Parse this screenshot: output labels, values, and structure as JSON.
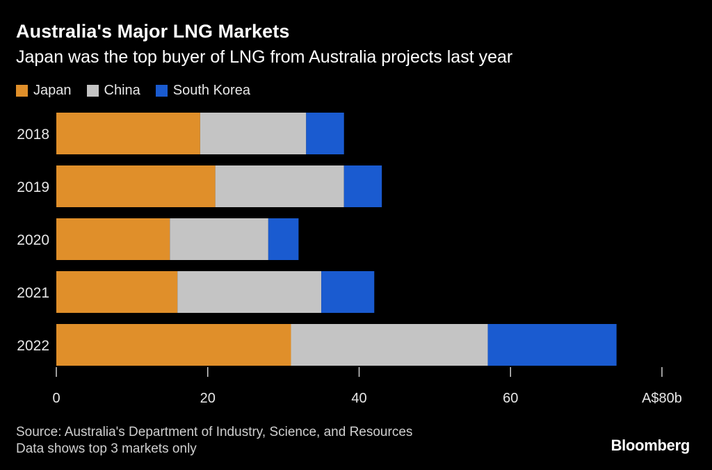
{
  "header": {
    "title": "Australia's Major LNG Markets",
    "subtitle": "Japan was the top buyer of LNG from Australia projects last year"
  },
  "footer": {
    "source": "Source: Australia's Department of Industry, Science, and Resources",
    "note": "Data shows top 3 markets only",
    "brand": "Bloomberg"
  },
  "chart_data": {
    "type": "bar",
    "orientation": "horizontal",
    "stacked": true,
    "title": "Australia's Major LNG Markets",
    "subtitle": "Japan was the top buyer of LNG from Australia projects last year",
    "categories": [
      "2018",
      "2019",
      "2020",
      "2021",
      "2022"
    ],
    "series": [
      {
        "name": "Japan",
        "color": "#E08F2A",
        "values": [
          19,
          21,
          15,
          16,
          31
        ]
      },
      {
        "name": "China",
        "color": "#C4C4C4",
        "values": [
          14,
          17,
          13,
          19,
          26
        ]
      },
      {
        "name": "South Korea",
        "color": "#1A5BD0",
        "values": [
          5,
          5,
          4,
          7,
          17
        ]
      }
    ],
    "xlim": [
      0,
      80
    ],
    "ticks": [
      {
        "value": 0,
        "label": "0"
      },
      {
        "value": 20,
        "label": "20"
      },
      {
        "value": 40,
        "label": "40"
      },
      {
        "value": 60,
        "label": "60"
      },
      {
        "value": 80,
        "label": "A$80b"
      }
    ],
    "grid": false,
    "legend_position": "top-left"
  }
}
